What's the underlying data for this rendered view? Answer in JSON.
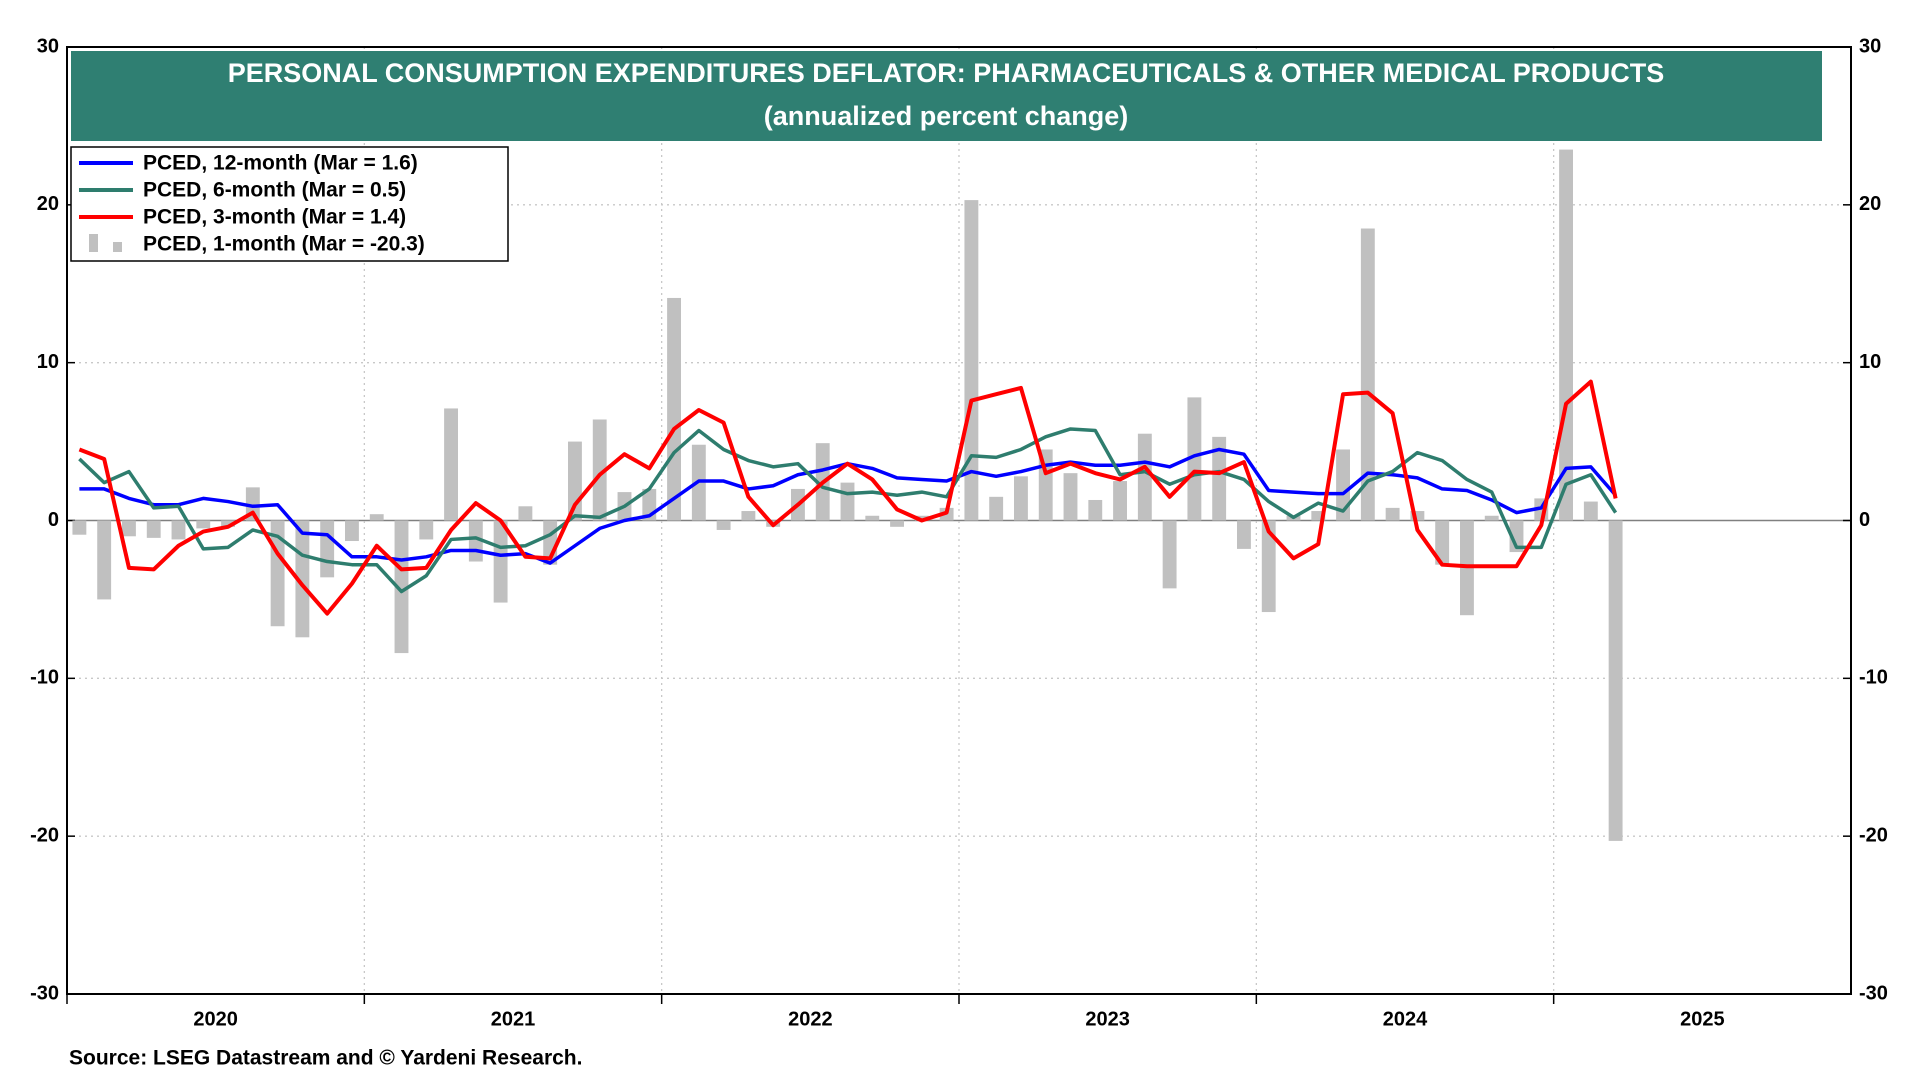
{
  "chart_data": {
    "type": "line",
    "title": "PERSONAL CONSUMPTION EXPENDITURES DEFLATOR: PHARMACEUTICALS & OTHER MEDICAL PRODUCTS",
    "subtitle": "(annualized percent change)",
    "source": "Source: LSEG Datastream and © Yardeni Research.",
    "x": [
      "2020-01",
      "2020-02",
      "2020-03",
      "2020-04",
      "2020-05",
      "2020-06",
      "2020-07",
      "2020-08",
      "2020-09",
      "2020-10",
      "2020-11",
      "2020-12",
      "2021-01",
      "2021-02",
      "2021-03",
      "2021-04",
      "2021-05",
      "2021-06",
      "2021-07",
      "2021-08",
      "2021-09",
      "2021-10",
      "2021-11",
      "2021-12",
      "2022-01",
      "2022-02",
      "2022-03",
      "2022-04",
      "2022-05",
      "2022-06",
      "2022-07",
      "2022-08",
      "2022-09",
      "2022-10",
      "2022-11",
      "2022-12",
      "2023-01",
      "2023-02",
      "2023-03",
      "2023-04",
      "2023-05",
      "2023-06",
      "2023-07",
      "2023-08",
      "2023-09",
      "2023-10",
      "2023-11",
      "2023-12",
      "2024-01",
      "2024-02",
      "2024-03",
      "2024-04",
      "2024-05",
      "2024-06",
      "2024-07",
      "2024-08",
      "2024-09",
      "2024-10",
      "2024-11",
      "2024-12",
      "2025-01",
      "2025-02",
      "2025-03"
    ],
    "xlim": [
      "2020-01",
      "2026-01"
    ],
    "xticks": [
      2020,
      2021,
      2022,
      2023,
      2024,
      2025
    ],
    "ylim": [
      -30,
      30
    ],
    "yticks": [
      -30,
      -20,
      -10,
      0,
      10,
      20,
      30
    ],
    "grid": true,
    "legend": "upper left",
    "series": [
      {
        "name": "PCED, 1-month (Mar = -20.3)",
        "type": "bar",
        "color": "#c0c0c0",
        "values": [
          -0.9,
          -5.0,
          -1.0,
          -1.1,
          -1.2,
          -0.5,
          -0.4,
          2.1,
          -6.7,
          -7.4,
          -3.6,
          -1.3,
          0.4,
          -8.4,
          -1.2,
          7.1,
          -2.6,
          -5.2,
          0.9,
          -2.8,
          5.0,
          6.4,
          1.8,
          2.0,
          14.1,
          4.8,
          -0.6,
          0.6,
          -0.4,
          2.0,
          4.9,
          2.4,
          0.3,
          -0.4,
          0.3,
          0.8,
          20.3,
          1.5,
          2.8,
          4.5,
          3.0,
          1.3,
          2.5,
          5.5,
          -4.3,
          7.8,
          5.3,
          -1.8,
          -5.8,
          0.3,
          0.6,
          4.5,
          18.5,
          0.8,
          0.6,
          -2.8,
          -6.0,
          0.3,
          -2.0,
          1.4,
          23.5,
          1.2,
          -20.3
        ]
      },
      {
        "name": "PCED, 12-month (Mar = 1.6)",
        "type": "line",
        "color": "#0000ff",
        "values": [
          2.0,
          2.0,
          1.4,
          1.0,
          1.0,
          1.4,
          1.2,
          0.9,
          1.0,
          -0.8,
          -0.9,
          -2.3,
          -2.3,
          -2.5,
          -2.3,
          -1.9,
          -1.9,
          -2.2,
          -2.1,
          -2.7,
          -1.6,
          -0.5,
          0.0,
          0.3,
          1.4,
          2.5,
          2.5,
          2.0,
          2.2,
          2.9,
          3.2,
          3.6,
          3.3,
          2.7,
          2.6,
          2.5,
          3.1,
          2.8,
          3.1,
          3.5,
          3.7,
          3.5,
          3.5,
          3.7,
          3.4,
          4.1,
          4.5,
          4.2,
          1.9,
          1.8,
          1.7,
          1.7,
          3.0,
          2.9,
          2.7,
          2.0,
          1.9,
          1.3,
          0.5,
          0.8,
          3.3,
          3.4,
          1.6
        ]
      },
      {
        "name": "PCED, 6-month (Mar = 0.5)",
        "type": "line",
        "color": "#2e7d6e",
        "values": [
          3.9,
          2.4,
          3.1,
          0.8,
          0.9,
          -1.8,
          -1.7,
          -0.6,
          -1.0,
          -2.2,
          -2.6,
          -2.8,
          -2.8,
          -4.5,
          -3.5,
          -1.2,
          -1.1,
          -1.7,
          -1.6,
          -0.9,
          0.3,
          0.2,
          0.9,
          2.0,
          4.3,
          5.7,
          4.5,
          3.8,
          3.4,
          3.6,
          2.1,
          1.7,
          1.8,
          1.6,
          1.8,
          1.5,
          4.1,
          4.0,
          4.5,
          5.3,
          5.8,
          5.7,
          2.9,
          3.1,
          2.3,
          2.9,
          3.1,
          2.6,
          1.2,
          0.2,
          1.1,
          0.6,
          2.5,
          3.1,
          4.3,
          3.8,
          2.6,
          1.8,
          -1.7,
          -1.7,
          2.3,
          2.9,
          0.5
        ]
      },
      {
        "name": "PCED, 3-month (Mar = 1.4)",
        "type": "line",
        "color": "#ff0000",
        "values": [
          4.5,
          3.9,
          -3.0,
          -3.1,
          -1.6,
          -0.7,
          -0.4,
          0.5,
          -2.1,
          -4.1,
          -5.9,
          -4.0,
          -1.6,
          -3.1,
          -3.0,
          -0.6,
          1.1,
          0.0,
          -2.3,
          -2.4,
          1.0,
          2.9,
          4.2,
          3.3,
          5.8,
          7.0,
          6.2,
          1.5,
          -0.3,
          1.0,
          2.4,
          3.6,
          2.6,
          0.7,
          0.0,
          0.5,
          7.6,
          8.0,
          8.4,
          3.0,
          3.6,
          3.0,
          2.6,
          3.4,
          1.5,
          3.1,
          3.0,
          3.7,
          -0.7,
          -2.4,
          -1.5,
          8.0,
          8.1,
          6.8,
          -0.6,
          -2.8,
          -2.9,
          -2.9,
          -2.9,
          -0.3,
          7.4,
          8.8,
          1.4
        ]
      }
    ]
  }
}
